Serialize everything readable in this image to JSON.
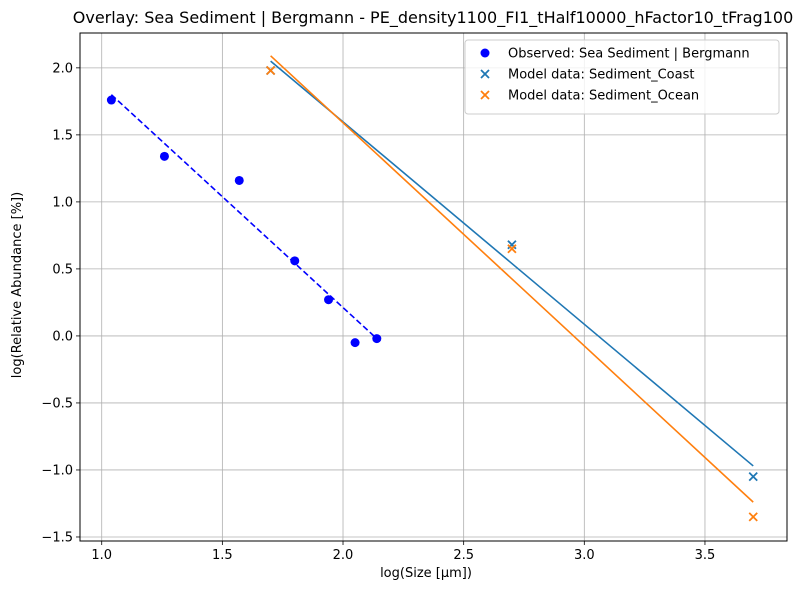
{
  "chart_data": {
    "type": "scatter",
    "title": "Overlay: Sea Sediment | Bergmann - PE_density1100_FI1_tHalf10000_hFactor10_tFrag100",
    "xlabel": "log(Size [μm])",
    "ylabel": "log(Relative Abundance [%])",
    "xlim": [
      0.91,
      3.84
    ],
    "ylim": [
      -1.53,
      2.26
    ],
    "xticks": [
      1.0,
      1.5,
      2.0,
      2.5,
      3.0,
      3.5
    ],
    "xtick_labels": [
      "1.0",
      "1.5",
      "2.0",
      "2.5",
      "3.0",
      "3.5"
    ],
    "yticks": [
      -1.5,
      -1.0,
      -0.5,
      0.0,
      0.5,
      1.0,
      1.5,
      2.0
    ],
    "ytick_labels": [
      "−1.5",
      "−1.0",
      "−0.5",
      "0.0",
      "0.5",
      "1.0",
      "1.5",
      "2.0"
    ],
    "grid": true,
    "legend_position": "top-right",
    "series": [
      {
        "name": "Observed: Sea Sediment | Bergmann",
        "marker": "circle",
        "color": "#0000ff",
        "x": [
          1.04,
          1.26,
          1.57,
          1.8,
          1.94,
          2.05,
          2.14
        ],
        "y": [
          1.76,
          1.34,
          1.16,
          0.56,
          0.27,
          -0.05,
          -0.02
        ]
      },
      {
        "name": "Model data: Sediment_Coast",
        "marker": "x",
        "color": "#1f77b4",
        "x": [
          1.7,
          2.7,
          3.7
        ],
        "y": [
          1.98,
          0.68,
          -1.05
        ]
      },
      {
        "name": "Model data: Sediment_Ocean",
        "marker": "x",
        "color": "#ff7f0e",
        "x": [
          1.7,
          2.7,
          3.7
        ],
        "y": [
          1.98,
          0.65,
          -1.35
        ]
      }
    ],
    "fit_lines": [
      {
        "series": "Observed: Sea Sediment | Bergmann",
        "style": "dashed",
        "color": "#0000ff",
        "x": [
          1.04,
          2.14
        ],
        "y": [
          1.8,
          -0.02
        ]
      },
      {
        "series": "Model data: Sediment_Coast",
        "style": "solid",
        "color": "#1f77b4",
        "x": [
          1.7,
          3.7
        ],
        "y": [
          2.05,
          -0.97
        ]
      },
      {
        "series": "Model data: Sediment_Ocean",
        "style": "solid",
        "color": "#ff7f0e",
        "x": [
          1.7,
          3.7
        ],
        "y": [
          2.09,
          -1.24
        ]
      }
    ]
  }
}
